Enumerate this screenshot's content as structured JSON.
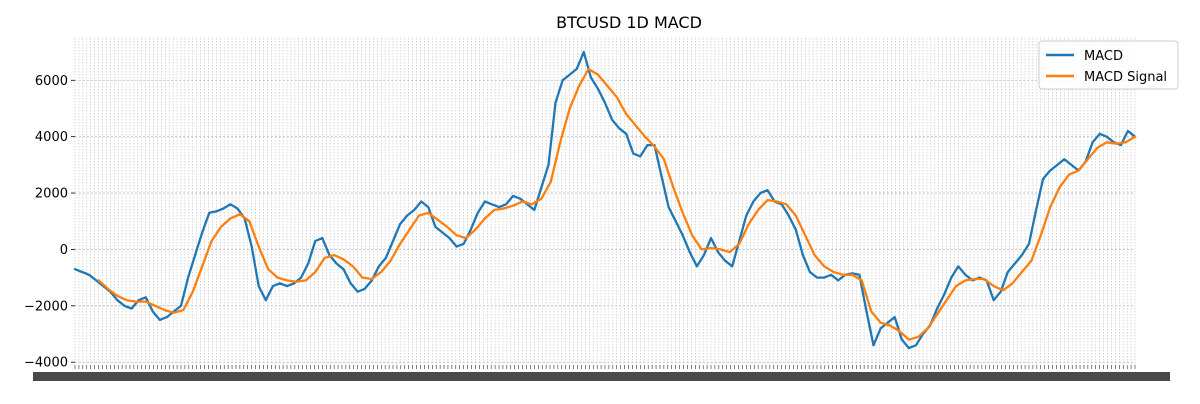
{
  "chart_data": {
    "type": "line",
    "title": "BTCUSD 1D MACD",
    "xlabel": "",
    "ylabel": "",
    "ylim": [
      -4100,
      7500
    ],
    "yticks": [
      -4000,
      -2000,
      0,
      2000,
      4000,
      6000
    ],
    "ytick_labels": [
      "−4000",
      "−2000",
      "0",
      "2000",
      "4000",
      "6000"
    ],
    "grid": true,
    "legend_position": "top-right",
    "series": [
      {
        "name": "MACD",
        "color": "#1f77b4",
        "points": [
          [
            0,
            -700
          ],
          [
            3,
            -800
          ],
          [
            6,
            -900
          ],
          [
            9,
            -1100
          ],
          [
            12,
            -1300
          ],
          [
            15,
            -1500
          ],
          [
            18,
            -1800
          ],
          [
            21,
            -2000
          ],
          [
            24,
            -2100
          ],
          [
            27,
            -1800
          ],
          [
            30,
            -1700
          ],
          [
            33,
            -2200
          ],
          [
            36,
            -2500
          ],
          [
            39,
            -2400
          ],
          [
            42,
            -2200
          ],
          [
            45,
            -2000
          ],
          [
            48,
            -1000
          ],
          [
            51,
            -200
          ],
          [
            54,
            600
          ],
          [
            57,
            1300
          ],
          [
            60,
            1350
          ],
          [
            63,
            1450
          ],
          [
            66,
            1600
          ],
          [
            69,
            1450
          ],
          [
            72,
            1100
          ],
          [
            75,
            100
          ],
          [
            78,
            -1300
          ],
          [
            81,
            -1800
          ],
          [
            84,
            -1300
          ],
          [
            87,
            -1200
          ],
          [
            90,
            -1300
          ],
          [
            93,
            -1200
          ],
          [
            96,
            -1000
          ],
          [
            99,
            -500
          ],
          [
            102,
            300
          ],
          [
            105,
            400
          ],
          [
            108,
            -200
          ],
          [
            111,
            -500
          ],
          [
            114,
            -700
          ],
          [
            117,
            -1200
          ],
          [
            120,
            -1500
          ],
          [
            123,
            -1400
          ],
          [
            126,
            -1100
          ],
          [
            129,
            -600
          ],
          [
            132,
            -300
          ],
          [
            135,
            300
          ],
          [
            138,
            900
          ],
          [
            141,
            1200
          ],
          [
            144,
            1400
          ],
          [
            147,
            1700
          ],
          [
            150,
            1500
          ],
          [
            153,
            800
          ],
          [
            156,
            600
          ],
          [
            159,
            400
          ],
          [
            162,
            100
          ],
          [
            165,
            200
          ],
          [
            168,
            700
          ],
          [
            171,
            1300
          ],
          [
            174,
            1700
          ],
          [
            177,
            1600
          ],
          [
            180,
            1500
          ],
          [
            183,
            1600
          ],
          [
            186,
            1900
          ],
          [
            189,
            1800
          ],
          [
            192,
            1600
          ],
          [
            195,
            1400
          ],
          [
            198,
            2200
          ],
          [
            201,
            3000
          ],
          [
            204,
            5200
          ],
          [
            207,
            6000
          ],
          [
            210,
            6200
          ],
          [
            213,
            6400
          ],
          [
            216,
            7000
          ],
          [
            219,
            6100
          ],
          [
            222,
            5700
          ],
          [
            225,
            5200
          ],
          [
            228,
            4600
          ],
          [
            231,
            4300
          ],
          [
            234,
            4100
          ],
          [
            237,
            3400
          ],
          [
            240,
            3300
          ],
          [
            243,
            3700
          ],
          [
            246,
            3700
          ],
          [
            249,
            2600
          ],
          [
            252,
            1500
          ],
          [
            255,
            1000
          ],
          [
            258,
            500
          ],
          [
            261,
            -100
          ],
          [
            264,
            -600
          ],
          [
            267,
            -200
          ],
          [
            270,
            400
          ],
          [
            273,
            -100
          ],
          [
            276,
            -400
          ],
          [
            279,
            -600
          ],
          [
            282,
            300
          ],
          [
            285,
            1200
          ],
          [
            288,
            1700
          ],
          [
            291,
            2000
          ],
          [
            294,
            2100
          ],
          [
            297,
            1700
          ],
          [
            300,
            1600
          ],
          [
            303,
            1200
          ],
          [
            306,
            700
          ],
          [
            309,
            -200
          ],
          [
            312,
            -800
          ],
          [
            315,
            -1000
          ],
          [
            318,
            -1000
          ],
          [
            321,
            -900
          ],
          [
            324,
            -1100
          ],
          [
            327,
            -900
          ],
          [
            330,
            -850
          ],
          [
            333,
            -900
          ],
          [
            336,
            -2200
          ],
          [
            339,
            -3400
          ],
          [
            342,
            -2800
          ],
          [
            345,
            -2600
          ],
          [
            348,
            -2400
          ],
          [
            351,
            -3200
          ],
          [
            354,
            -3500
          ],
          [
            357,
            -3400
          ],
          [
            360,
            -3000
          ],
          [
            363,
            -2700
          ],
          [
            366,
            -2100
          ],
          [
            369,
            -1600
          ],
          [
            372,
            -1000
          ],
          [
            375,
            -600
          ],
          [
            378,
            -900
          ],
          [
            381,
            -1100
          ],
          [
            384,
            -1000
          ],
          [
            387,
            -1100
          ],
          [
            390,
            -1800
          ],
          [
            393,
            -1500
          ],
          [
            396,
            -800
          ],
          [
            399,
            -500
          ],
          [
            402,
            -200
          ],
          [
            405,
            200
          ],
          [
            408,
            1400
          ],
          [
            411,
            2500
          ],
          [
            414,
            2800
          ],
          [
            417,
            3000
          ],
          [
            420,
            3200
          ],
          [
            423,
            3000
          ],
          [
            426,
            2800
          ],
          [
            429,
            3100
          ],
          [
            432,
            3800
          ],
          [
            435,
            4100
          ],
          [
            438,
            4000
          ],
          [
            441,
            3800
          ],
          [
            444,
            3700
          ],
          [
            447,
            4200
          ],
          [
            450,
            4000
          ]
        ]
      },
      {
        "name": "MACD Signal",
        "color": "#ff7f0e",
        "points": [
          [
            10,
            -1100
          ],
          [
            14,
            -1400
          ],
          [
            18,
            -1650
          ],
          [
            22,
            -1800
          ],
          [
            26,
            -1850
          ],
          [
            30,
            -1850
          ],
          [
            34,
            -2000
          ],
          [
            38,
            -2150
          ],
          [
            42,
            -2250
          ],
          [
            46,
            -2150
          ],
          [
            50,
            -1500
          ],
          [
            54,
            -600
          ],
          [
            58,
            300
          ],
          [
            62,
            800
          ],
          [
            66,
            1100
          ],
          [
            70,
            1250
          ],
          [
            74,
            1000
          ],
          [
            78,
            100
          ],
          [
            82,
            -700
          ],
          [
            86,
            -1000
          ],
          [
            90,
            -1100
          ],
          [
            94,
            -1150
          ],
          [
            98,
            -1100
          ],
          [
            102,
            -800
          ],
          [
            106,
            -300
          ],
          [
            110,
            -200
          ],
          [
            114,
            -350
          ],
          [
            118,
            -600
          ],
          [
            122,
            -1000
          ],
          [
            126,
            -1050
          ],
          [
            130,
            -800
          ],
          [
            134,
            -400
          ],
          [
            138,
            200
          ],
          [
            142,
            700
          ],
          [
            146,
            1200
          ],
          [
            150,
            1300
          ],
          [
            154,
            1050
          ],
          [
            158,
            800
          ],
          [
            162,
            500
          ],
          [
            166,
            400
          ],
          [
            170,
            700
          ],
          [
            174,
            1100
          ],
          [
            178,
            1400
          ],
          [
            182,
            1450
          ],
          [
            186,
            1550
          ],
          [
            190,
            1700
          ],
          [
            194,
            1600
          ],
          [
            198,
            1800
          ],
          [
            202,
            2400
          ],
          [
            206,
            3800
          ],
          [
            210,
            5000
          ],
          [
            214,
            5800
          ],
          [
            218,
            6400
          ],
          [
            222,
            6200
          ],
          [
            226,
            5800
          ],
          [
            230,
            5400
          ],
          [
            234,
            4800
          ],
          [
            238,
            4400
          ],
          [
            242,
            4000
          ],
          [
            246,
            3650
          ],
          [
            250,
            3200
          ],
          [
            254,
            2200
          ],
          [
            258,
            1300
          ],
          [
            262,
            500
          ],
          [
            266,
            0
          ],
          [
            270,
            50
          ],
          [
            274,
            0
          ],
          [
            278,
            -100
          ],
          [
            282,
            200
          ],
          [
            286,
            900
          ],
          [
            290,
            1400
          ],
          [
            294,
            1750
          ],
          [
            298,
            1700
          ],
          [
            302,
            1600
          ],
          [
            306,
            1200
          ],
          [
            310,
            500
          ],
          [
            314,
            -200
          ],
          [
            318,
            -600
          ],
          [
            322,
            -800
          ],
          [
            326,
            -900
          ],
          [
            330,
            -900
          ],
          [
            334,
            -1100
          ],
          [
            338,
            -2200
          ],
          [
            342,
            -2600
          ],
          [
            346,
            -2700
          ],
          [
            350,
            -2900
          ],
          [
            354,
            -3200
          ],
          [
            358,
            -3100
          ],
          [
            362,
            -2800
          ],
          [
            366,
            -2300
          ],
          [
            370,
            -1800
          ],
          [
            374,
            -1300
          ],
          [
            378,
            -1100
          ],
          [
            382,
            -1050
          ],
          [
            386,
            -1050
          ],
          [
            390,
            -1300
          ],
          [
            394,
            -1450
          ],
          [
            398,
            -1200
          ],
          [
            402,
            -800
          ],
          [
            406,
            -400
          ],
          [
            410,
            500
          ],
          [
            414,
            1500
          ],
          [
            418,
            2200
          ],
          [
            422,
            2650
          ],
          [
            426,
            2800
          ],
          [
            430,
            3200
          ],
          [
            434,
            3600
          ],
          [
            438,
            3800
          ],
          [
            442,
            3750
          ],
          [
            446,
            3800
          ],
          [
            450,
            4000
          ]
        ]
      }
    ]
  }
}
